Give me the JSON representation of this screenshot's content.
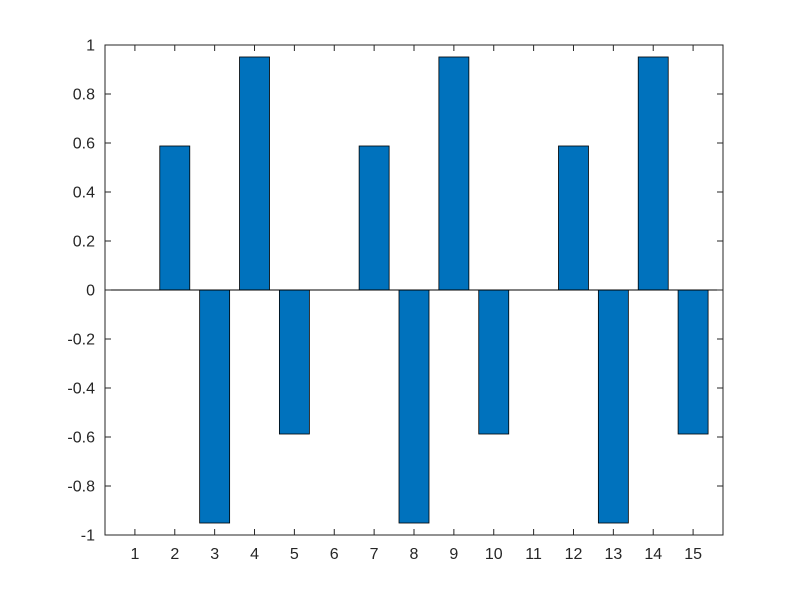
{
  "chart_data": {
    "type": "bar",
    "title": "",
    "xlabel": "",
    "ylabel": "",
    "categories": [
      "1",
      "2",
      "3",
      "4",
      "5",
      "6",
      "7",
      "8",
      "9",
      "10",
      "11",
      "12",
      "13",
      "14",
      "15"
    ],
    "values": [
      0,
      0.5878,
      -0.9511,
      0.9511,
      -0.5878,
      0,
      0.5878,
      -0.9511,
      0.9511,
      -0.5878,
      0,
      0.5878,
      -0.9511,
      0.9511,
      -0.5878
    ],
    "xlim": [
      0.25,
      15.75
    ],
    "ylim": [
      -1,
      1
    ],
    "yticks": [
      -1,
      -0.8,
      -0.6,
      -0.4,
      -0.2,
      0,
      0.2,
      0.4,
      0.6,
      0.8,
      1
    ],
    "ytick_labels": [
      "-1",
      "-0.8",
      "-0.6",
      "-0.4",
      "-0.2",
      "0",
      "0.2",
      "0.4",
      "0.6",
      "0.8",
      "1"
    ],
    "grid": false,
    "bar_color": "#0072BD",
    "edge_color": "#000000",
    "axis_color": "#262626"
  }
}
